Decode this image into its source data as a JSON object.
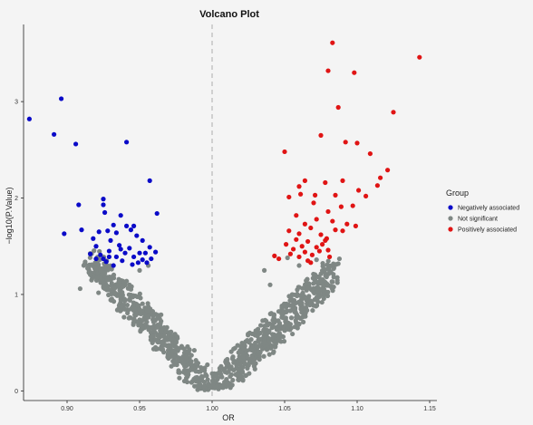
{
  "chart_data": {
    "type": "scatter",
    "title": "Volcano Plot",
    "xlabel": "OR",
    "ylabel": "−log10(P.Value)",
    "xlim": [
      0.87,
      1.155
    ],
    "ylim": [
      -0.1,
      3.8
    ],
    "xticks": [
      0.9,
      0.95,
      1.0,
      1.05,
      1.1,
      1.15
    ],
    "xtick_labels": [
      "0.90",
      "0.95",
      "1.00",
      "1.05",
      "1.10",
      "1.15"
    ],
    "yticks": [
      0,
      1,
      2,
      3
    ],
    "ytick_labels": [
      "0",
      "1",
      "2",
      "3"
    ],
    "reference_line_x": 1.0,
    "grid": false,
    "legend": {
      "title": "Group",
      "position": "right",
      "entries": [
        {
          "label": "Negatively associated",
          "color": "#0a0ac8"
        },
        {
          "label": "Not significant",
          "color": "#7f8784"
        },
        {
          "label": "Positively associated",
          "color": "#e01414"
        }
      ]
    },
    "series": [
      {
        "name": "Negatively associated",
        "color": "#0a0ac8",
        "points": [
          [
            0.874,
            2.82
          ],
          [
            0.891,
            2.66
          ],
          [
            0.896,
            3.03
          ],
          [
            0.906,
            2.56
          ],
          [
            0.941,
            2.58
          ],
          [
            0.957,
            2.18
          ],
          [
            0.898,
            1.63
          ],
          [
            0.908,
            1.93
          ],
          [
            0.91,
            1.67
          ],
          [
            0.925,
            1.99
          ],
          [
            0.925,
            1.93
          ],
          [
            0.926,
            1.85
          ],
          [
            0.937,
            1.82
          ],
          [
            0.962,
            1.84
          ],
          [
            0.918,
            1.58
          ],
          [
            0.92,
            1.5
          ],
          [
            0.922,
            1.65
          ],
          [
            0.928,
            1.66
          ],
          [
            0.93,
            1.56
          ],
          [
            0.932,
            1.72
          ],
          [
            0.934,
            1.64
          ],
          [
            0.941,
            1.71
          ],
          [
            0.944,
            1.67
          ],
          [
            0.946,
            1.71
          ],
          [
            0.948,
            1.61
          ],
          [
            0.952,
            1.56
          ],
          [
            0.954,
            1.43
          ],
          [
            0.957,
            1.49
          ],
          [
            0.961,
            1.44
          ],
          [
            0.92,
            1.37
          ],
          [
            0.923,
            1.41
          ],
          [
            0.925,
            1.37
          ],
          [
            0.929,
            1.45
          ],
          [
            0.934,
            1.39
          ],
          [
            0.937,
            1.47
          ],
          [
            0.94,
            1.43
          ],
          [
            0.943,
            1.48
          ],
          [
            0.946,
            1.39
          ],
          [
            0.949,
            1.33
          ],
          [
            0.955,
            1.33
          ],
          [
            0.927,
            1.34
          ],
          [
            0.932,
            1.3
          ],
          [
            0.938,
            1.35
          ],
          [
            0.945,
            1.31
          ],
          [
            0.95,
            1.43
          ],
          [
            0.916,
            1.42
          ],
          [
            0.952,
            1.36
          ],
          [
            0.936,
            1.51
          ],
          [
            0.929,
            1.39
          ],
          [
            0.958,
            1.37
          ]
        ]
      },
      {
        "name": "Positively associated",
        "color": "#e01414",
        "points": [
          [
            1.083,
            3.61
          ],
          [
            1.143,
            3.46
          ],
          [
            1.08,
            3.32
          ],
          [
            1.098,
            3.3
          ],
          [
            1.087,
            2.94
          ],
          [
            1.125,
            2.89
          ],
          [
            1.075,
            2.65
          ],
          [
            1.092,
            2.58
          ],
          [
            1.1,
            2.57
          ],
          [
            1.05,
            2.48
          ],
          [
            1.109,
            2.46
          ],
          [
            1.121,
            2.29
          ],
          [
            1.116,
            2.21
          ],
          [
            1.06,
            2.12
          ],
          [
            1.064,
            2.18
          ],
          [
            1.078,
            2.16
          ],
          [
            1.09,
            2.18
          ],
          [
            1.114,
            2.13
          ],
          [
            1.053,
            2.01
          ],
          [
            1.061,
            2.04
          ],
          [
            1.071,
            2.03
          ],
          [
            1.085,
            2.03
          ],
          [
            1.101,
            2.08
          ],
          [
            1.106,
            2.02
          ],
          [
            1.07,
            1.95
          ],
          [
            1.08,
            1.86
          ],
          [
            1.089,
            1.91
          ],
          [
            1.097,
            1.92
          ],
          [
            1.058,
            1.82
          ],
          [
            1.064,
            1.73
          ],
          [
            1.072,
            1.78
          ],
          [
            1.083,
            1.76
          ],
          [
            1.093,
            1.73
          ],
          [
            1.099,
            1.71
          ],
          [
            1.053,
            1.66
          ],
          [
            1.06,
            1.63
          ],
          [
            1.068,
            1.69
          ],
          [
            1.075,
            1.62
          ],
          [
            1.085,
            1.67
          ],
          [
            1.09,
            1.66
          ],
          [
            1.051,
            1.52
          ],
          [
            1.056,
            1.47
          ],
          [
            1.062,
            1.5
          ],
          [
            1.066,
            1.55
          ],
          [
            1.072,
            1.49
          ],
          [
            1.078,
            1.56
          ],
          [
            1.08,
            1.46
          ],
          [
            1.043,
            1.4
          ],
          [
            1.046,
            1.37
          ],
          [
            1.054,
            1.42
          ],
          [
            1.06,
            1.39
          ],
          [
            1.064,
            1.44
          ],
          [
            1.069,
            1.41
          ],
          [
            1.074,
            1.45
          ],
          [
            1.068,
            1.33
          ],
          [
            1.079,
            1.58
          ],
          [
            1.081,
            1.39
          ],
          [
            1.058,
            1.57
          ],
          [
            1.066,
            1.35
          ],
          [
            1.076,
            1.52
          ]
        ]
      },
      {
        "name": "Not significant",
        "color": "#7f8784",
        "generated": true,
        "count": 1100
      }
    ]
  }
}
